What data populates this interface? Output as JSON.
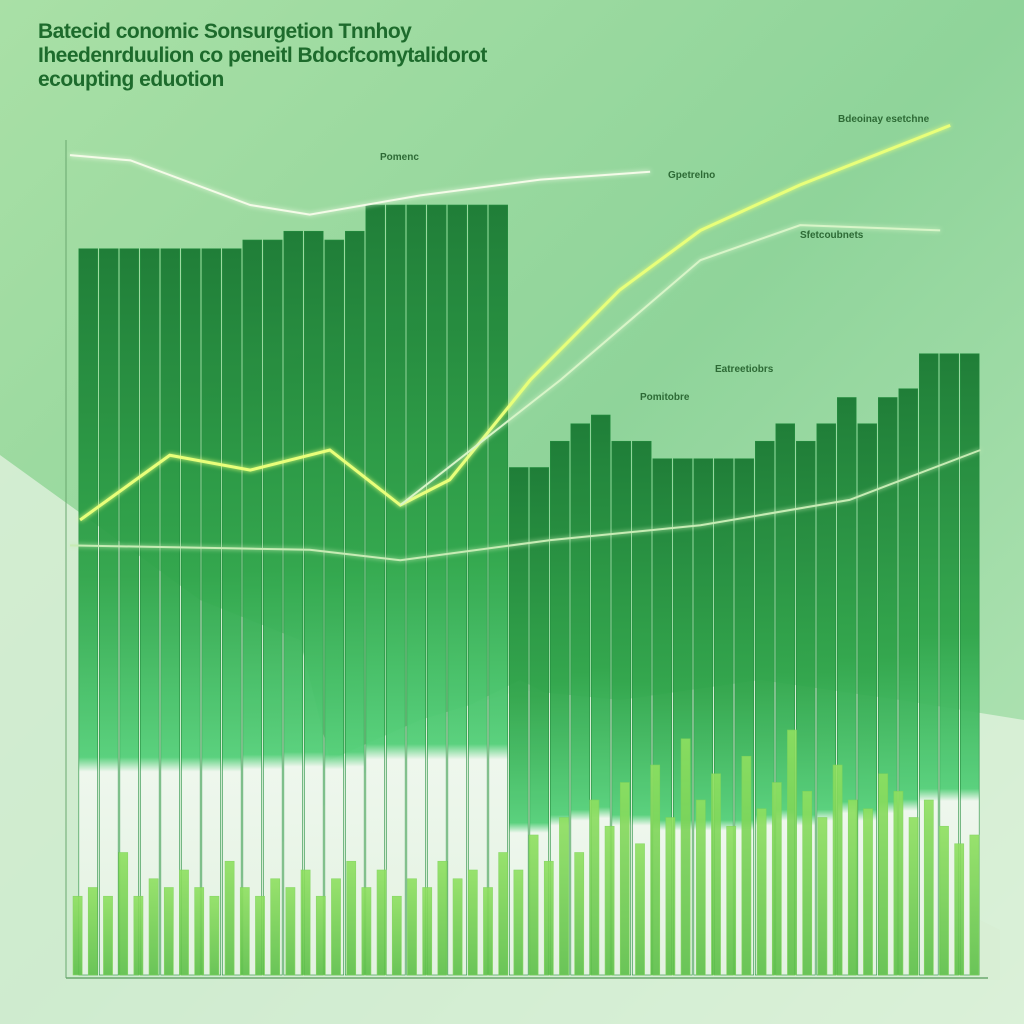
{
  "chart_data": [
    {
      "type": "bar",
      "title": "Batecid conomic Sonsurgetion Tnnhoy",
      "subtitle": "Iheedenrduulion co peneitl Bdocfcomytalidorot",
      "caption": "ecoupting eduotion",
      "annotations": [
        "Gpetrelno",
        "Bdeoinay esetchne",
        "Pomitobre",
        "Sfetcoubnets",
        "Eatreetiobrs",
        "Pomenc"
      ],
      "categories": [
        null,
        null,
        null,
        null,
        null,
        null,
        null,
        null,
        null,
        null,
        null,
        null,
        null,
        null,
        null,
        null,
        null,
        null,
        null,
        null,
        null,
        null,
        null,
        null,
        null,
        null,
        null,
        null,
        null,
        null,
        null,
        null,
        null,
        null,
        null,
        null,
        null,
        null,
        null,
        null,
        null,
        null,
        null,
        null
      ],
      "values": [
        83,
        83,
        83,
        83,
        83,
        83,
        83,
        83,
        84,
        84,
        85,
        85,
        84,
        85,
        88,
        88,
        88,
        88,
        88,
        88,
        88,
        58,
        58,
        61,
        63,
        64,
        61,
        61,
        59,
        59,
        59,
        59,
        59,
        61,
        63,
        61,
        63,
        66,
        63,
        66,
        67,
        71,
        71,
        71
      ],
      "color": "#1e8a3a",
      "ylim": [
        0,
        100
      ]
    },
    {
      "type": "bar",
      "categories": [
        null,
        null,
        null,
        null,
        null,
        null,
        null,
        null,
        null,
        null,
        null,
        null,
        null,
        null,
        null,
        null,
        null,
        null,
        null,
        null,
        null,
        null,
        null,
        null,
        null,
        null,
        null,
        null,
        null,
        null,
        null,
        null,
        null,
        null,
        null,
        null,
        null,
        null,
        null,
        null,
        null,
        null,
        null,
        null,
        null,
        null,
        null,
        null,
        null,
        null,
        null,
        null,
        null,
        null,
        null,
        null,
        null,
        null,
        null,
        null
      ],
      "values": [
        9,
        10,
        9,
        14,
        9,
        11,
        10,
        12,
        10,
        9,
        13,
        10,
        9,
        11,
        10,
        12,
        9,
        11,
        13,
        10,
        12,
        9,
        11,
        10,
        13,
        11,
        12,
        10,
        14,
        12,
        16,
        13,
        18,
        14,
        20,
        17,
        22,
        15,
        24,
        18,
        27,
        20,
        23,
        17,
        25,
        19,
        22,
        28,
        21,
        18,
        24,
        20,
        19,
        23,
        21,
        18,
        20,
        17,
        15,
        16
      ],
      "color": "#7fd45a",
      "ylim": [
        0,
        100
      ]
    },
    {
      "type": "line",
      "xlim": [
        0,
        100
      ],
      "ylim": [
        0,
        100
      ],
      "series": [
        {
          "color": "#f4fbe8",
          "x": [
            0,
            6.6,
            19.7,
            26.2,
            38.3,
            51.4,
            63.4
          ],
          "values": [
            93.7,
            93.1,
            88,
            86.9,
            89.1,
            90.9,
            91.8
          ]
        },
        {
          "color": "#e8ff7a",
          "x": [
            1.1,
            10.9,
            19.7,
            28.4,
            36.1,
            41.5,
            50.3,
            60.1,
            68.9,
            79.8,
            96.2
          ],
          "values": [
            52,
            59.4,
            57.7,
            60,
            53.7,
            56.6,
            68,
            78.3,
            85.1,
            90.3,
            97.1
          ]
        },
        {
          "color": "#d8f5c8",
          "x": [
            36.1,
            53.6,
            68.9,
            79.8,
            95.1
          ],
          "values": [
            53.7,
            68,
            81.7,
            85.7,
            85.1
          ]
        },
        {
          "color": "#c6ecb4",
          "x": [
            0,
            26.2,
            36.1,
            52.5,
            68.9,
            85.2,
            99.5
          ],
          "values": [
            49.1,
            48.6,
            47.4,
            49.7,
            51.4,
            54.3,
            60
          ]
        }
      ]
    }
  ]
}
